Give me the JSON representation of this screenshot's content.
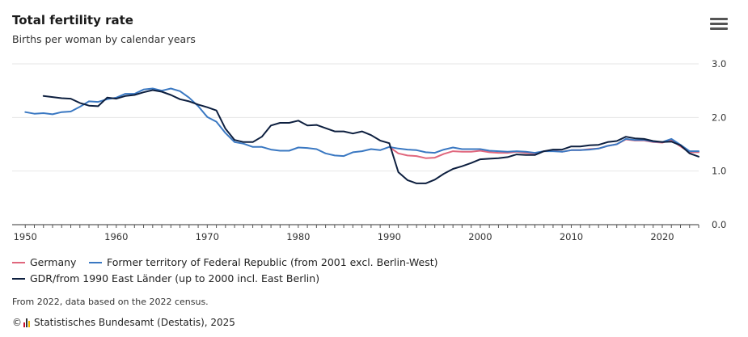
{
  "title": "Total fertility rate",
  "subtitle": "Births per woman by calendar years",
  "menu_icon": "hamburger-menu-icon",
  "legend": [
    {
      "label": "Germany",
      "color": "#e0677d"
    },
    {
      "label": "Former territory of Federal Republic (from 2001 excl. Berlin-West)",
      "color": "#3a78c2"
    },
    {
      "label": "GDR/from 1990 East Länder (up to 2000 incl. East Berlin)",
      "color": "#0d1f3f"
    }
  ],
  "note": "From 2022, data based on the 2022 census.",
  "source": {
    "copyright": "©",
    "logo_icon": "destatis-logo-icon",
    "text": "Statistisches Bundesamt (Destatis), 2025"
  },
  "chart_data": {
    "type": "line",
    "title": "Total fertility rate",
    "subtitle": "Births per woman by calendar years",
    "xlabel": "",
    "ylabel": "",
    "xlim": [
      1949,
      2024
    ],
    "ylim": [
      0,
      3
    ],
    "x_ticks": [
      "1950",
      "1960",
      "1970",
      "1980",
      "1990",
      "2000",
      "2010",
      "2020"
    ],
    "y_ticks": [
      "3.0",
      "2.0",
      "1.0",
      "0.0"
    ],
    "y_tick_values": [
      3,
      2,
      1,
      0
    ],
    "y_axis_side": "right",
    "grid": true,
    "legend_position": "bottom-left",
    "series": [
      {
        "name": "Germany",
        "color": "#e0677d",
        "x": [
          1990,
          1991,
          1992,
          1993,
          1994,
          1995,
          1996,
          1997,
          1998,
          1999,
          2000,
          2001,
          2002,
          2003,
          2004,
          2005,
          2006,
          2007,
          2008,
          2009,
          2010,
          2011,
          2012,
          2013,
          2014,
          2015,
          2016,
          2017,
          2018,
          2019,
          2020,
          2021,
          2022,
          2023,
          2024
        ],
        "y": [
          1.45,
          1.33,
          1.29,
          1.28,
          1.24,
          1.25,
          1.32,
          1.37,
          1.36,
          1.36,
          1.38,
          1.35,
          1.34,
          1.34,
          1.36,
          1.34,
          1.33,
          1.37,
          1.38,
          1.36,
          1.39,
          1.39,
          1.41,
          1.42,
          1.47,
          1.5,
          1.59,
          1.57,
          1.57,
          1.54,
          1.53,
          1.58,
          1.46,
          1.35,
          1.35
        ]
      },
      {
        "name": "Former territory of Federal Republic (from 2001 excl. Berlin-West)",
        "color": "#3a78c2",
        "x": [
          1950,
          1951,
          1952,
          1953,
          1954,
          1955,
          1956,
          1957,
          1958,
          1959,
          1960,
          1961,
          1962,
          1963,
          1964,
          1965,
          1966,
          1967,
          1968,
          1969,
          1970,
          1971,
          1972,
          1973,
          1974,
          1975,
          1976,
          1977,
          1978,
          1979,
          1980,
          1981,
          1982,
          1983,
          1984,
          1985,
          1986,
          1987,
          1988,
          1989,
          1990,
          1991,
          1992,
          1993,
          1994,
          1995,
          1996,
          1997,
          1998,
          1999,
          2000,
          2001,
          2002,
          2003,
          2004,
          2005,
          2006,
          2007,
          2008,
          2009,
          2010,
          2011,
          2012,
          2013,
          2014,
          2015,
          2016,
          2017,
          2018,
          2019,
          2020,
          2021,
          2022,
          2023,
          2024
        ],
        "y": [
          2.1,
          2.07,
          2.08,
          2.06,
          2.1,
          2.11,
          2.2,
          2.3,
          2.29,
          2.34,
          2.37,
          2.44,
          2.44,
          2.52,
          2.54,
          2.5,
          2.54,
          2.49,
          2.37,
          2.21,
          2.01,
          1.92,
          1.71,
          1.54,
          1.51,
          1.45,
          1.45,
          1.4,
          1.38,
          1.38,
          1.44,
          1.43,
          1.41,
          1.33,
          1.29,
          1.28,
          1.35,
          1.37,
          1.41,
          1.39,
          1.45,
          1.42,
          1.4,
          1.39,
          1.35,
          1.34,
          1.4,
          1.44,
          1.41,
          1.41,
          1.41,
          1.38,
          1.37,
          1.36,
          1.37,
          1.36,
          1.34,
          1.37,
          1.37,
          1.36,
          1.39,
          1.39,
          1.4,
          1.42,
          1.47,
          1.5,
          1.6,
          1.58,
          1.58,
          1.55,
          1.54,
          1.6,
          1.49,
          1.37,
          1.37
        ]
      },
      {
        "name": "GDR/from 1990 East Länder (up to 2000 incl. East Berlin)",
        "color": "#0d1f3f",
        "x": [
          1952,
          1953,
          1954,
          1955,
          1956,
          1957,
          1958,
          1959,
          1960,
          1961,
          1962,
          1963,
          1964,
          1965,
          1966,
          1967,
          1968,
          1969,
          1970,
          1971,
          1972,
          1973,
          1974,
          1975,
          1976,
          1977,
          1978,
          1979,
          1980,
          1981,
          1982,
          1983,
          1984,
          1985,
          1986,
          1987,
          1988,
          1989,
          1990,
          1991,
          1992,
          1993,
          1994,
          1995,
          1996,
          1997,
          1998,
          1999,
          2000,
          2001,
          2002,
          2003,
          2004,
          2005,
          2006,
          2007,
          2008,
          2009,
          2010,
          2011,
          2012,
          2013,
          2014,
          2015,
          2016,
          2017,
          2018,
          2019,
          2020,
          2021,
          2022,
          2023,
          2024
        ],
        "y": [
          2.4,
          2.38,
          2.36,
          2.35,
          2.27,
          2.22,
          2.21,
          2.37,
          2.35,
          2.4,
          2.42,
          2.47,
          2.51,
          2.48,
          2.42,
          2.34,
          2.3,
          2.24,
          2.19,
          2.13,
          1.79,
          1.58,
          1.54,
          1.54,
          1.64,
          1.85,
          1.9,
          1.9,
          1.94,
          1.85,
          1.86,
          1.8,
          1.74,
          1.74,
          1.7,
          1.74,
          1.67,
          1.57,
          1.52,
          0.98,
          0.83,
          0.77,
          0.77,
          0.84,
          0.95,
          1.04,
          1.09,
          1.15,
          1.22,
          1.23,
          1.24,
          1.26,
          1.31,
          1.3,
          1.3,
          1.37,
          1.4,
          1.4,
          1.46,
          1.46,
          1.48,
          1.49,
          1.54,
          1.56,
          1.64,
          1.61,
          1.6,
          1.56,
          1.54,
          1.55,
          1.48,
          1.33,
          1.27
        ]
      }
    ]
  }
}
